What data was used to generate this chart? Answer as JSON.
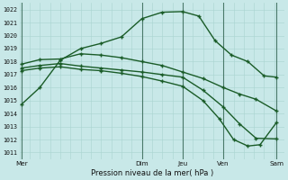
{
  "title": "Pression niveau de la mer( hPa )",
  "bg_color": "#c8e8e8",
  "grid_color_minor": "#a8d4d0",
  "grid_color_major": "#88b8b4",
  "line_color": "#1a5c28",
  "vline_color": "#4a7a6a",
  "ylim": [
    1010.5,
    1022.5
  ],
  "yticks": [
    1011,
    1012,
    1013,
    1014,
    1015,
    1016,
    1017,
    1018,
    1019,
    1020,
    1021,
    1022
  ],
  "day_labels": [
    "Mer",
    "",
    "Dim",
    "Jeu",
    "Ven",
    "",
    "Sam"
  ],
  "day_positions": [
    0,
    1.5,
    3,
    4,
    5,
    5.7,
    6.3
  ],
  "vline_positions": [
    0.05,
    3.0,
    4.0,
    5.0,
    6.3
  ],
  "line1_x": [
    0.05,
    0.5,
    1.0,
    1.5,
    2.0,
    2.5,
    3.0,
    3.5,
    4.0,
    4.4,
    4.8,
    5.2,
    5.6,
    6.0,
    6.3
  ],
  "line1_y": [
    1014.7,
    1016.0,
    1018.1,
    1019.0,
    1019.4,
    1019.9,
    1021.3,
    1021.8,
    1021.85,
    1021.5,
    1019.6,
    1018.5,
    1018.0,
    1016.9,
    1016.8
  ],
  "line2_x": [
    0.05,
    0.5,
    1.0,
    1.5,
    2.0,
    2.5,
    3.0,
    3.5,
    4.0,
    4.5,
    5.0,
    5.4,
    5.8,
    6.3
  ],
  "line2_y": [
    1017.8,
    1018.15,
    1018.2,
    1018.6,
    1018.5,
    1018.3,
    1018.0,
    1017.7,
    1017.2,
    1016.7,
    1016.0,
    1015.5,
    1015.1,
    1014.2
  ],
  "line3_x": [
    0.05,
    0.5,
    1.0,
    1.5,
    2.0,
    2.5,
    3.0,
    3.5,
    4.0,
    4.5,
    5.0,
    5.4,
    5.8,
    6.3
  ],
  "line3_y": [
    1017.5,
    1017.7,
    1017.85,
    1017.65,
    1017.5,
    1017.35,
    1017.2,
    1017.0,
    1016.8,
    1015.8,
    1014.5,
    1013.2,
    1012.1,
    1012.05
  ],
  "line4_x": [
    0.05,
    0.5,
    1.0,
    1.5,
    2.0,
    2.5,
    3.0,
    3.5,
    4.0,
    4.5,
    4.9,
    5.25,
    5.6,
    5.9,
    6.3
  ],
  "line4_y": [
    1017.3,
    1017.5,
    1017.6,
    1017.4,
    1017.3,
    1017.1,
    1016.85,
    1016.5,
    1016.1,
    1015.0,
    1013.6,
    1012.0,
    1011.5,
    1011.6,
    1013.3
  ]
}
